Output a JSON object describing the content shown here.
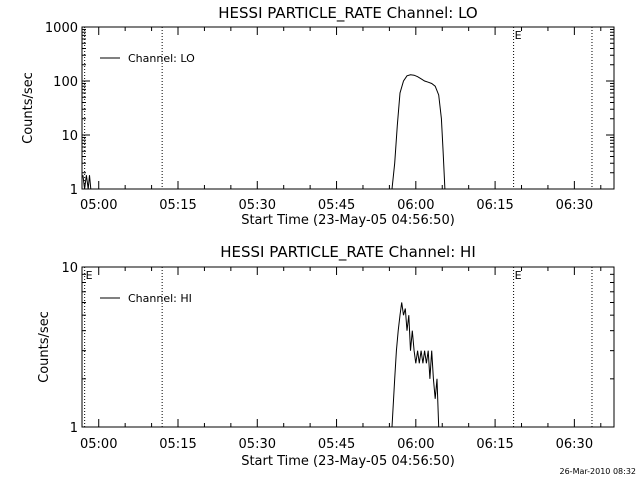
{
  "chart_data": [
    {
      "type": "line",
      "title": "HESSI PARTICLE_RATE Channel: LO",
      "xlabel": "Start Time (23-May-05 04:56:50)",
      "ylabel": "Counts/sec",
      "yscale": "log",
      "ylim": [
        1,
        1000
      ],
      "xlim": [
        "04:56:50",
        "06:37:30"
      ],
      "x_ticks": [
        "05:00",
        "05:15",
        "05:30",
        "05:45",
        "06:00",
        "06:15",
        "06:30"
      ],
      "y_ticks": [
        "1",
        "10",
        "100",
        "1000"
      ],
      "legend": {
        "entries": [
          "Channel: LO"
        ],
        "placement": "top-left"
      },
      "markers": [
        {
          "time": "04:57:20",
          "label": ""
        },
        {
          "time": "05:12:00",
          "label": ""
        },
        {
          "time": "06:18:30",
          "label": "E"
        },
        {
          "time": "06:33:20",
          "label": ""
        }
      ],
      "series": [
        {
          "name": "Channel: LO",
          "points": [
            [
              "04:57:00",
              1.8
            ],
            [
              "04:57:20",
              1.0
            ],
            [
              "04:57:40",
              1.8
            ],
            [
              "04:58:00",
              1.0
            ],
            [
              "04:58:15",
              1.8
            ],
            [
              "04:58:30",
              1.0
            ],
            [
              "05:55:30",
              1.0
            ],
            [
              "05:56:00",
              3
            ],
            [
              "05:56:30",
              15
            ],
            [
              "05:57:00",
              60
            ],
            [
              "05:57:40",
              100
            ],
            [
              "05:58:20",
              125
            ],
            [
              "05:59:00",
              130
            ],
            [
              "05:59:40",
              128
            ],
            [
              "06:00:20",
              120
            ],
            [
              "06:01:00",
              110
            ],
            [
              "06:01:40",
              100
            ],
            [
              "06:02:20",
              95
            ],
            [
              "06:03:00",
              90
            ],
            [
              "06:03:40",
              80
            ],
            [
              "06:04:20",
              55
            ],
            [
              "06:04:50",
              20
            ],
            [
              "06:05:10",
              5
            ],
            [
              "06:05:30",
              1.0
            ]
          ]
        }
      ]
    },
    {
      "type": "line",
      "title": "HESSI PARTICLE_RATE Channel: HI",
      "xlabel": "Start Time (23-May-05 04:56:50)",
      "ylabel": "Counts/sec",
      "yscale": "log",
      "ylim": [
        1,
        10
      ],
      "xlim": [
        "04:56:50",
        "06:37:30"
      ],
      "x_ticks": [
        "05:00",
        "05:15",
        "05:30",
        "05:45",
        "06:00",
        "06:15",
        "06:30"
      ],
      "y_ticks": [
        "1",
        "10"
      ],
      "legend": {
        "entries": [
          "Channel: HI"
        ],
        "placement": "top-left"
      },
      "markers": [
        {
          "time": "04:57:20",
          "label": "E"
        },
        {
          "time": "05:12:00",
          "label": ""
        },
        {
          "time": "06:18:30",
          "label": "E"
        },
        {
          "time": "06:33:20",
          "label": ""
        }
      ],
      "series": [
        {
          "name": "Channel: HI",
          "points": [
            [
              "05:55:30",
              1.0
            ],
            [
              "05:56:00",
              2.0
            ],
            [
              "05:56:20",
              3.0
            ],
            [
              "05:56:40",
              4.0
            ],
            [
              "05:57:00",
              5.0
            ],
            [
              "05:57:20",
              6.0
            ],
            [
              "05:57:40",
              5.0
            ],
            [
              "05:58:00",
              5.5
            ],
            [
              "05:58:20",
              4.0
            ],
            [
              "05:58:40",
              5.0
            ],
            [
              "05:59:00",
              3.0
            ],
            [
              "05:59:20",
              4.0
            ],
            [
              "05:59:40",
              3.0
            ],
            [
              "06:00:00",
              2.5
            ],
            [
              "06:00:20",
              3.0
            ],
            [
              "06:00:40",
              2.5
            ],
            [
              "06:01:00",
              3.0
            ],
            [
              "06:01:20",
              2.5
            ],
            [
              "06:01:40",
              3.0
            ],
            [
              "06:02:00",
              2.5
            ],
            [
              "06:02:20",
              3.0
            ],
            [
              "06:02:40",
              2.0
            ],
            [
              "06:03:00",
              3.0
            ],
            [
              "06:03:20",
              2.0
            ],
            [
              "06:03:40",
              1.5
            ],
            [
              "06:04:00",
              2.0
            ],
            [
              "06:04:20",
              1.0
            ]
          ]
        }
      ]
    }
  ],
  "footer": {
    "timestamp": "26-Mar-2010 08:32"
  }
}
